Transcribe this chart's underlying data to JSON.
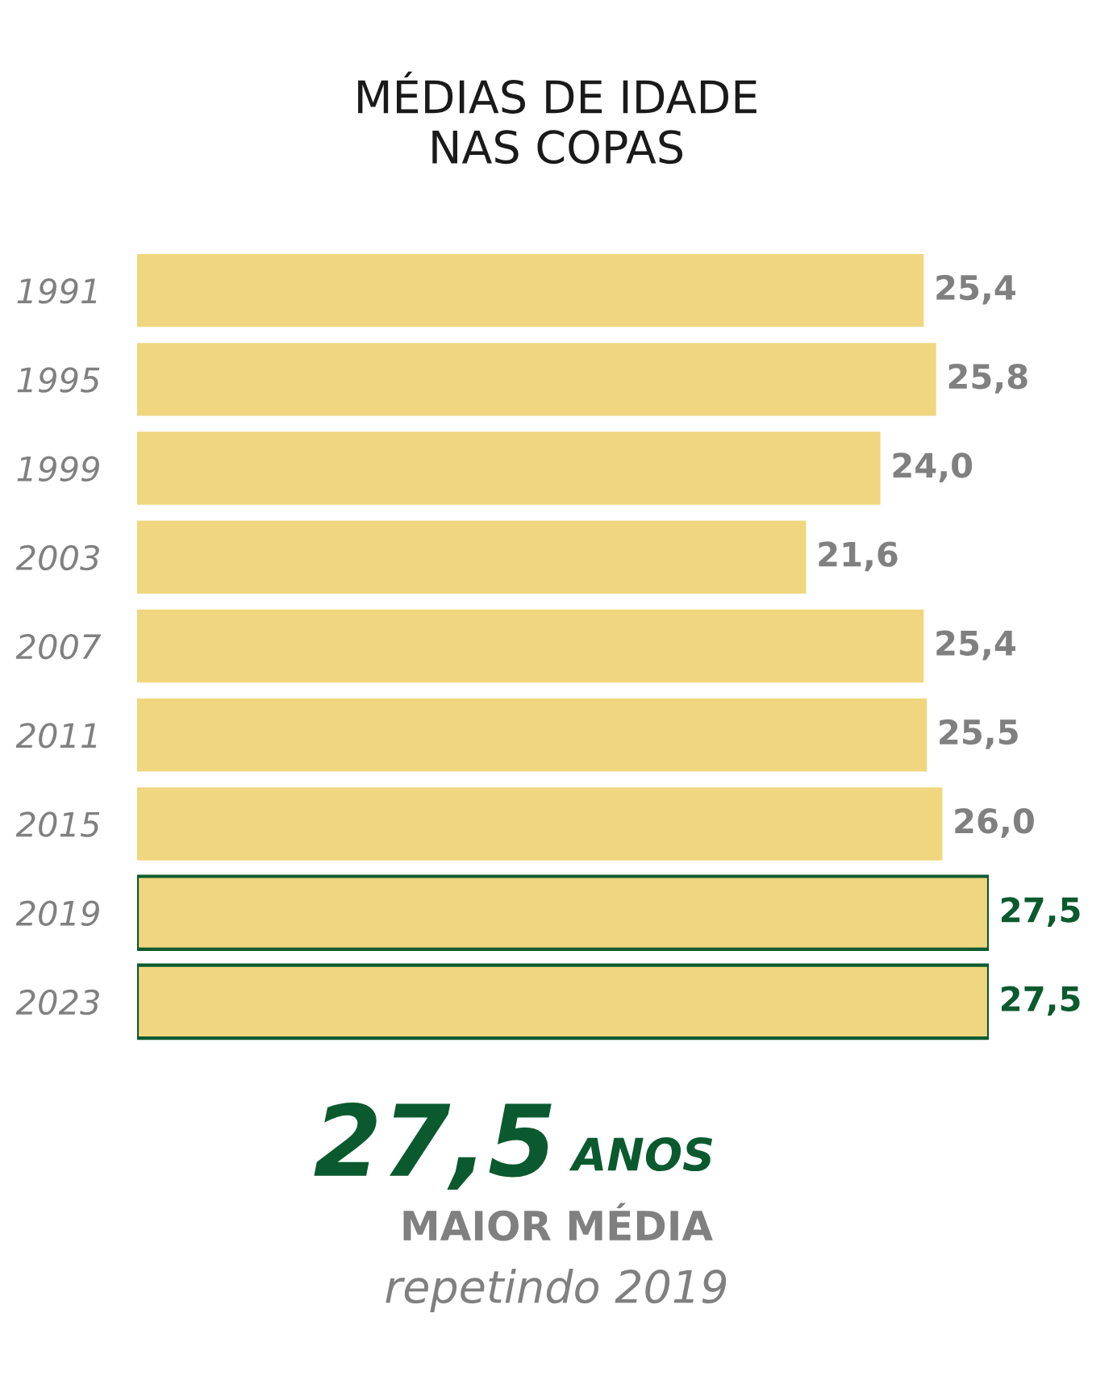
{
  "chart_data": {
    "type": "bar",
    "orientation": "horizontal",
    "title": "MÉDIAS DE IDADE\nNAS COPAS",
    "categories": [
      "1991",
      "1995",
      "1999",
      "2003",
      "2007",
      "2011",
      "2015",
      "2019",
      "2023"
    ],
    "values": [
      25.4,
      25.8,
      24.0,
      21.6,
      25.4,
      25.5,
      26.0,
      27.5,
      27.5
    ],
    "value_labels": [
      "25,4",
      "25,8",
      "24,0",
      "21,6",
      "25,4",
      "25,5",
      "26,0",
      "27,5",
      "27,5"
    ],
    "color": "#f0d67e",
    "grid": false,
    "legend": false,
    "tick_labels": "y",
    "annotations": [
      "27,5 ANOS",
      "MAIOR MÉDIA",
      "repetindo 2019"
    ]
  }
}
